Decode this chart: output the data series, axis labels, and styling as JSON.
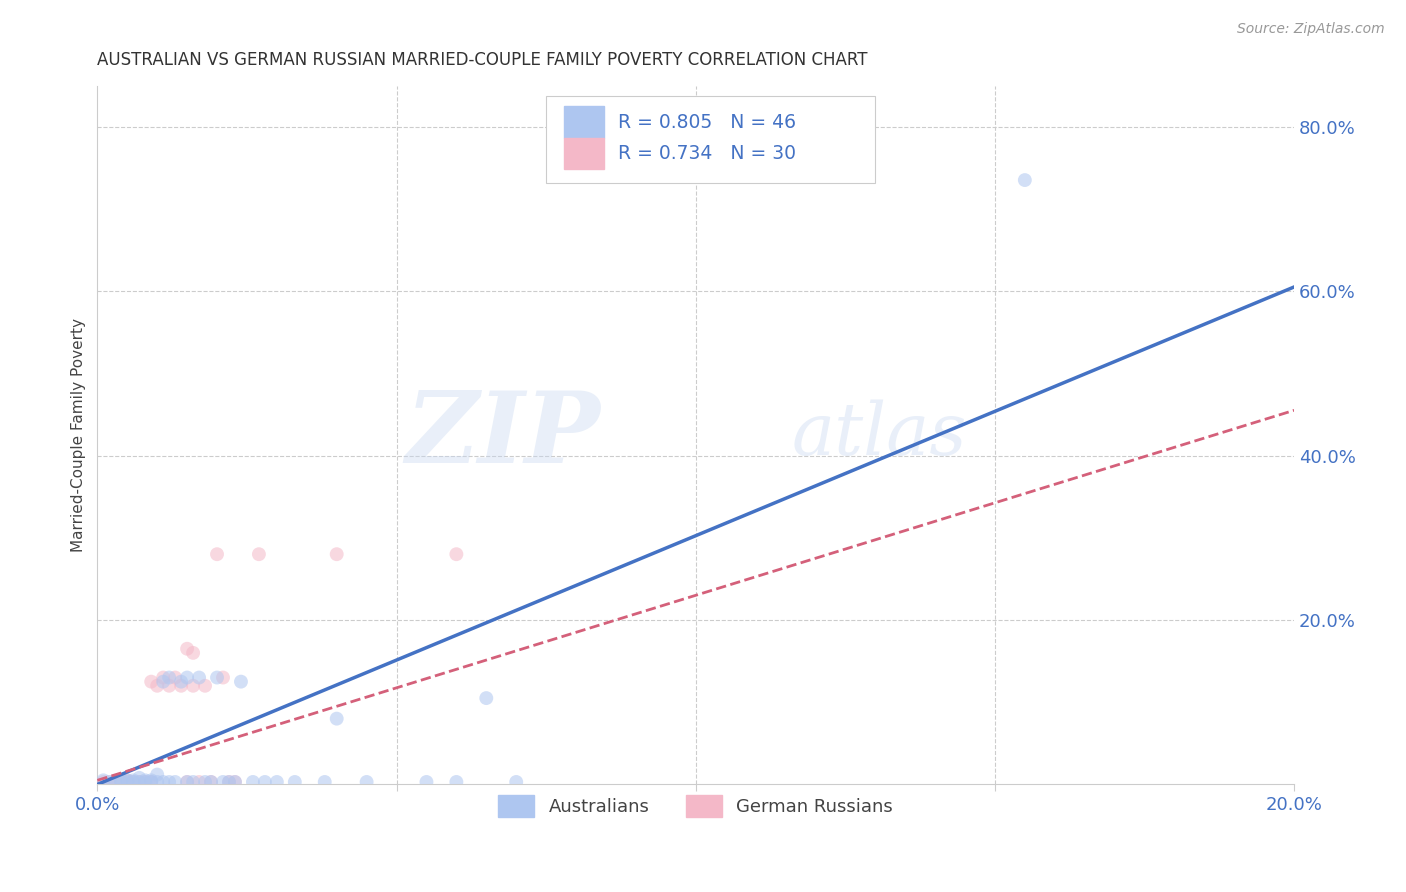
{
  "title": "AUSTRALIAN VS GERMAN RUSSIAN MARRIED-COUPLE FAMILY POVERTY CORRELATION CHART",
  "source": "Source: ZipAtlas.com",
  "ylabel": "Married-Couple Family Poverty",
  "xlim": [
    0.0,
    0.2
  ],
  "ylim": [
    0.0,
    0.85
  ],
  "yticks": [
    0.0,
    0.2,
    0.4,
    0.6,
    0.8
  ],
  "xticks": [
    0.0,
    0.05,
    0.1,
    0.15,
    0.2
  ],
  "xtick_labels": [
    "0.0%",
    "",
    "",
    "",
    "20.0%"
  ],
  "ytick_labels": [
    "",
    "20.0%",
    "40.0%",
    "60.0%",
    "80.0%"
  ],
  "watermark_zip": "ZIP",
  "watermark_atlas": "atlas",
  "legend_entries": [
    {
      "label": "R = 0.805   N = 46",
      "color": "#aec6f0"
    },
    {
      "label": "R = 0.734   N = 30",
      "color": "#f4b8c8"
    }
  ],
  "legend_bottom": [
    {
      "label": "Australians",
      "color": "#aec6f0"
    },
    {
      "label": "German Russians",
      "color": "#f4b8c8"
    }
  ],
  "aus_scatter": [
    [
      0.001,
      0.005
    ],
    [
      0.002,
      0.003
    ],
    [
      0.003,
      0.004
    ],
    [
      0.004,
      0.003
    ],
    [
      0.004,
      0.005
    ],
    [
      0.005,
      0.005
    ],
    [
      0.005,
      0.003
    ],
    [
      0.006,
      0.003
    ],
    [
      0.006,
      0.005
    ],
    [
      0.007,
      0.003
    ],
    [
      0.007,
      0.008
    ],
    [
      0.008,
      0.003
    ],
    [
      0.008,
      0.005
    ],
    [
      0.009,
      0.003
    ],
    [
      0.009,
      0.005
    ],
    [
      0.01,
      0.003
    ],
    [
      0.01,
      0.012
    ],
    [
      0.011,
      0.003
    ],
    [
      0.011,
      0.125
    ],
    [
      0.012,
      0.13
    ],
    [
      0.012,
      0.003
    ],
    [
      0.013,
      0.003
    ],
    [
      0.014,
      0.125
    ],
    [
      0.015,
      0.003
    ],
    [
      0.015,
      0.13
    ],
    [
      0.016,
      0.003
    ],
    [
      0.017,
      0.13
    ],
    [
      0.018,
      0.003
    ],
    [
      0.019,
      0.003
    ],
    [
      0.02,
      0.13
    ],
    [
      0.021,
      0.003
    ],
    [
      0.022,
      0.003
    ],
    [
      0.023,
      0.003
    ],
    [
      0.024,
      0.125
    ],
    [
      0.026,
      0.003
    ],
    [
      0.028,
      0.003
    ],
    [
      0.03,
      0.003
    ],
    [
      0.033,
      0.003
    ],
    [
      0.038,
      0.003
    ],
    [
      0.04,
      0.08
    ],
    [
      0.045,
      0.003
    ],
    [
      0.055,
      0.003
    ],
    [
      0.06,
      0.003
    ],
    [
      0.065,
      0.105
    ],
    [
      0.07,
      0.003
    ],
    [
      0.155,
      0.735
    ]
  ],
  "ger_scatter": [
    [
      0.001,
      0.003
    ],
    [
      0.002,
      0.003
    ],
    [
      0.003,
      0.003
    ],
    [
      0.004,
      0.003
    ],
    [
      0.005,
      0.003
    ],
    [
      0.005,
      0.005
    ],
    [
      0.006,
      0.003
    ],
    [
      0.007,
      0.003
    ],
    [
      0.008,
      0.003
    ],
    [
      0.009,
      0.003
    ],
    [
      0.009,
      0.125
    ],
    [
      0.01,
      0.12
    ],
    [
      0.011,
      0.13
    ],
    [
      0.012,
      0.12
    ],
    [
      0.013,
      0.13
    ],
    [
      0.014,
      0.12
    ],
    [
      0.015,
      0.003
    ],
    [
      0.015,
      0.165
    ],
    [
      0.016,
      0.12
    ],
    [
      0.016,
      0.16
    ],
    [
      0.017,
      0.003
    ],
    [
      0.018,
      0.12
    ],
    [
      0.019,
      0.003
    ],
    [
      0.02,
      0.28
    ],
    [
      0.021,
      0.13
    ],
    [
      0.022,
      0.003
    ],
    [
      0.023,
      0.003
    ],
    [
      0.027,
      0.28
    ],
    [
      0.04,
      0.28
    ],
    [
      0.06,
      0.28
    ]
  ],
  "aus_line_x": [
    0.0,
    0.2
  ],
  "aus_line_y": [
    0.0,
    0.605
  ],
  "ger_line_x": [
    0.0,
    0.2
  ],
  "ger_line_y": [
    0.005,
    0.455
  ],
  "aus_line_color": "#4472c4",
  "ger_line_color": "#d4607a",
  "scatter_alpha": 0.55,
  "scatter_size": 100,
  "grid_color": "#cccccc",
  "bg_color": "#ffffff",
  "title_color": "#333333",
  "axis_label_color": "#444444",
  "tick_color": "#4472c4",
  "source_color": "#999999"
}
